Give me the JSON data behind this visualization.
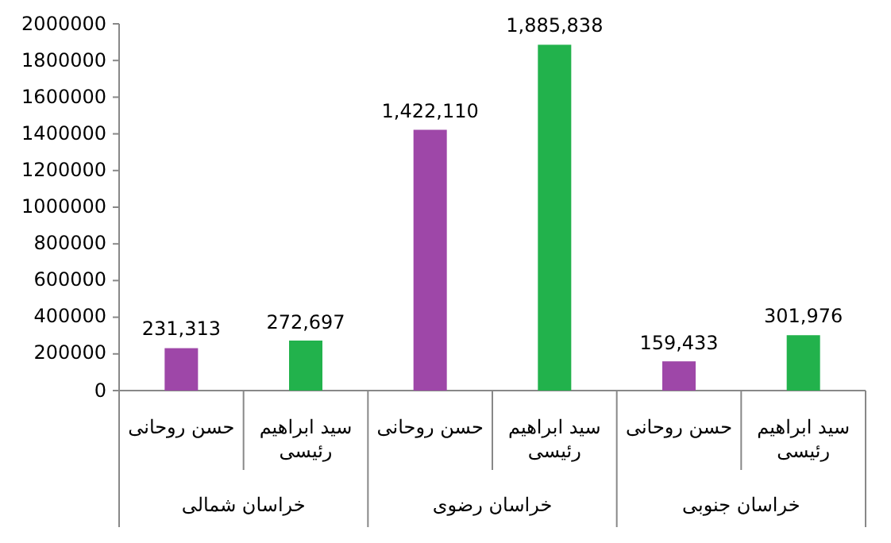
{
  "chart_data": {
    "type": "bar",
    "categories": [
      "خراسان شمالی",
      "خراسان رضوی",
      "خراسان جنوبی"
    ],
    "series": [
      {
        "name": "حسن روحانی",
        "color": "#9e47a8",
        "values": [
          231313,
          1422110,
          159433
        ],
        "value_labels": [
          "231,313",
          "1,422,110",
          "159,433"
        ]
      },
      {
        "name": "سید ابراهیم رئیسی",
        "color": "#22b24c",
        "values": [
          272697,
          1885838,
          301976
        ],
        "value_labels": [
          "272,697",
          "1,885,838",
          "301,976"
        ]
      }
    ],
    "ylim": [
      0,
      2000000
    ],
    "yticks": [
      0,
      200000,
      400000,
      600000,
      800000,
      1000000,
      1200000,
      1400000,
      1600000,
      1800000,
      2000000
    ]
  }
}
